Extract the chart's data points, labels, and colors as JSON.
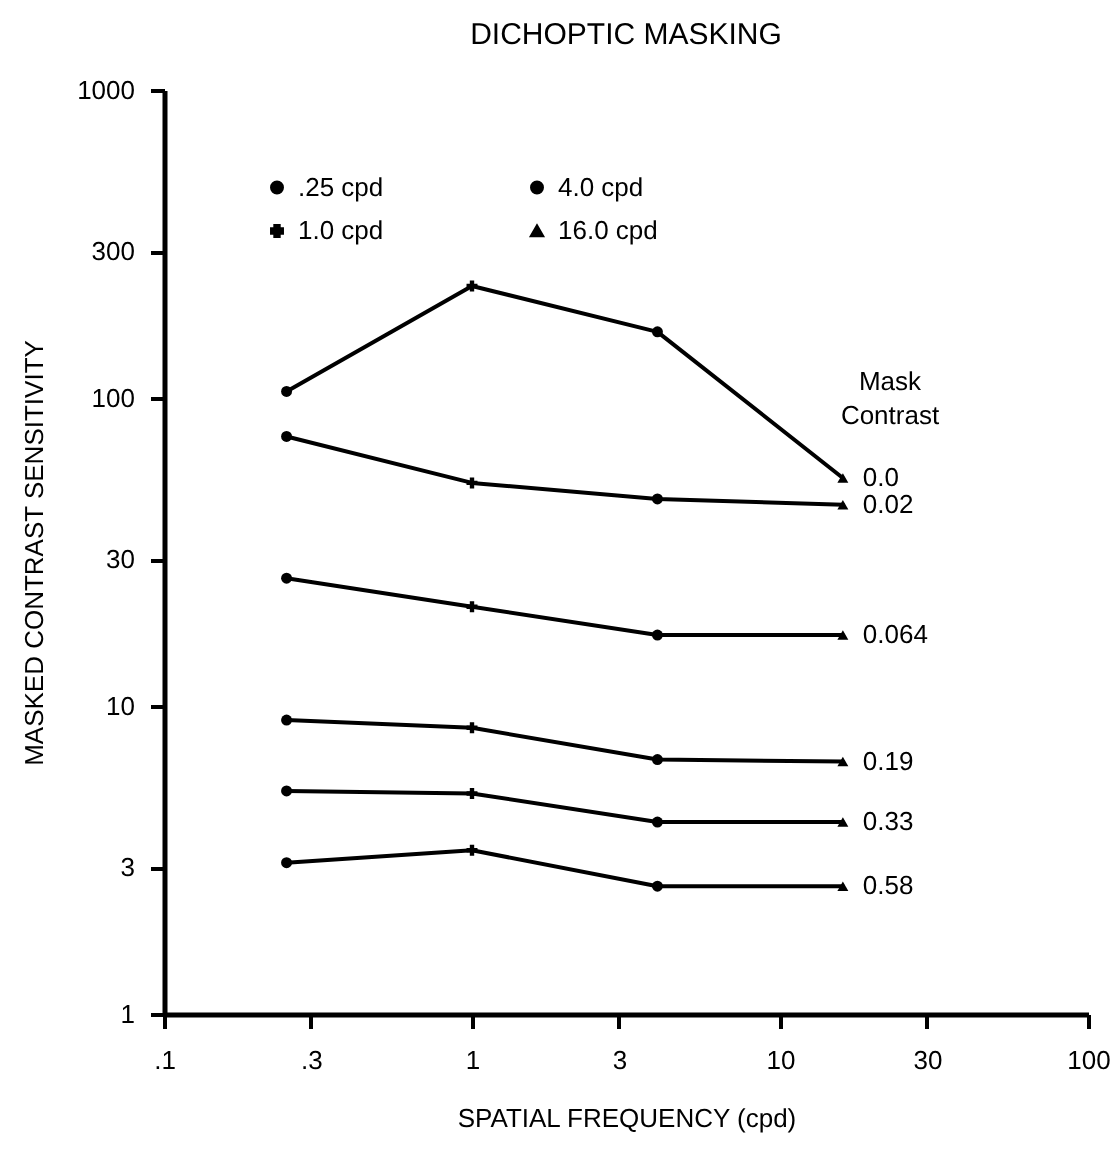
{
  "chart_data": {
    "type": "line",
    "title": "DICHOPTIC MASKING",
    "xlabel": "SPATIAL FREQUENCY (cpd)",
    "ylabel": "MASKED CONTRAST SENSITIVITY",
    "log": "xy",
    "grid": false,
    "legend": "top left",
    "annotations": [
      "Mask Contrast"
    ],
    "xlim": [
      0.1,
      100
    ],
    "xticks": [
      {
        "value": 0.1,
        "label": ".1"
      },
      {
        "value": 0.3,
        "label": ".3"
      },
      1,
      3,
      10,
      30,
      100
    ],
    "ylim": [
      1,
      1000
    ],
    "yticks": [
      1,
      3,
      10,
      30,
      100,
      300,
      1000
    ],
    "x": [
      0.25,
      1,
      4,
      16
    ],
    "series": [
      {
        "name": "0.0",
        "color": "#000000",
        "marker": "none",
        "values": [
          105,
          231,
          164,
          55
        ]
      },
      {
        "name": "0.02",
        "color": "#000000",
        "marker": "none",
        "values": [
          75,
          53,
          47,
          45
        ]
      },
      {
        "name": "0.064",
        "color": "#000000",
        "marker": "none",
        "values": [
          26,
          21,
          17,
          17
        ]
      },
      {
        "name": "0.19",
        "color": "#000000",
        "marker": "none",
        "values": [
          9.0,
          8.5,
          6.7,
          6.6
        ]
      },
      {
        "name": "0.33",
        "color": "#000000",
        "marker": "none",
        "values": [
          5.3,
          5.2,
          4.2,
          4.2
        ]
      },
      {
        "name": "0.58",
        "color": "#000000",
        "marker": "none",
        "values": [
          3.1,
          3.4,
          2.6,
          2.6
        ]
      },
      {
        "name": ".25 cpd",
        "type": "scatter",
        "color": "#000000",
        "marker": "circle",
        "x": [
          0.25,
          0.25,
          0.25,
          0.25,
          0.25,
          0.25
        ],
        "values": [
          105,
          75,
          26,
          9.0,
          5.3,
          3.1
        ]
      },
      {
        "name": "1.0 cpd",
        "type": "scatter",
        "color": "#000000",
        "marker": "cross",
        "x": [
          1,
          1,
          1,
          1,
          1,
          1
        ],
        "values": [
          231,
          53,
          21,
          8.5,
          5.2,
          3.4
        ]
      },
      {
        "name": "4.0 cpd",
        "type": "scatter",
        "color": "#000000",
        "marker": "circle",
        "x": [
          4,
          4,
          4,
          4,
          4,
          4
        ],
        "values": [
          164,
          47,
          17,
          6.7,
          4.2,
          2.6
        ]
      },
      {
        "name": "16.0 cpd",
        "type": "scatter",
        "color": "#000000",
        "marker": "triangle",
        "x": [
          16,
          16,
          16,
          16,
          16,
          16
        ],
        "values": [
          55,
          45,
          17,
          6.6,
          4.2,
          2.6
        ]
      }
    ]
  }
}
